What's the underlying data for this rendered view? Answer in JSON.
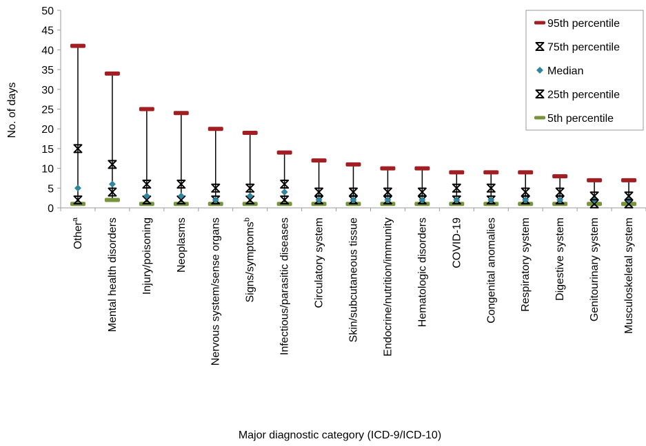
{
  "chart_data": {
    "type": "scatter",
    "xlabel": "Major diagnostic category (ICD-9/ICD-10)",
    "ylabel": "No. of days",
    "ylim": [
      0,
      50
    ],
    "yticks": [
      0,
      5,
      10,
      15,
      20,
      25,
      30,
      35,
      40,
      45,
      50
    ],
    "grid": false,
    "legend_position": "top-right",
    "categories": [
      {
        "base": "Other",
        "sup": "a"
      },
      {
        "base": "Mental health disorders",
        "sup": ""
      },
      {
        "base": "Injury/poisoning",
        "sup": ""
      },
      {
        "base": "Neoplasms",
        "sup": ""
      },
      {
        "base": "Nervous system/sense organs",
        "sup": ""
      },
      {
        "base": "Signs/symptoms",
        "sup": "b"
      },
      {
        "base": "Infectious/parasitic diseases",
        "sup": ""
      },
      {
        "base": "Circulatory system",
        "sup": ""
      },
      {
        "base": "Skin/subcutaneous tissue",
        "sup": ""
      },
      {
        "base": "Endocrine/nutrition/immunity",
        "sup": ""
      },
      {
        "base": "Hematologic disorders",
        "sup": ""
      },
      {
        "base": "COVID-19",
        "sup": ""
      },
      {
        "base": "Congenital anomalies",
        "sup": ""
      },
      {
        "base": "Respiratory system",
        "sup": ""
      },
      {
        "base": "Digestive system",
        "sup": ""
      },
      {
        "base": "Genitourinary system",
        "sup": ""
      },
      {
        "base": "Musculoskeletal system",
        "sup": ""
      }
    ],
    "series": [
      {
        "name": "95th percentile",
        "marker": "dash",
        "color": "#A11E22",
        "values": [
          41,
          34,
          25,
          24,
          20,
          19,
          14,
          12,
          11,
          10,
          10,
          9,
          9,
          9,
          8,
          7,
          7
        ]
      },
      {
        "name": "75th percentile",
        "marker": "asterisk",
        "color": "#000000",
        "values": [
          15,
          11,
          6,
          6,
          5,
          5,
          6,
          4,
          4,
          4,
          4,
          5,
          5,
          4,
          4,
          3,
          3
        ]
      },
      {
        "name": "Median",
        "marker": "diamond",
        "color": "#31859C",
        "values": [
          5,
          6,
          3,
          3,
          2,
          3,
          4,
          2,
          2,
          2,
          2,
          2,
          2,
          2,
          2,
          2,
          2
        ]
      },
      {
        "name": "25th percentile",
        "marker": "asterisk",
        "color": "#000000",
        "values": [
          2,
          4,
          2,
          2,
          2,
          2,
          2,
          2,
          2,
          2,
          2,
          2,
          2,
          2,
          2,
          1,
          1
        ]
      },
      {
        "name": "5th percentile",
        "marker": "dash",
        "color": "#77933C",
        "values": [
          1,
          2,
          1,
          1,
          1,
          1,
          1,
          1,
          1,
          1,
          1,
          1,
          1,
          1,
          1,
          1,
          1
        ]
      }
    ]
  }
}
